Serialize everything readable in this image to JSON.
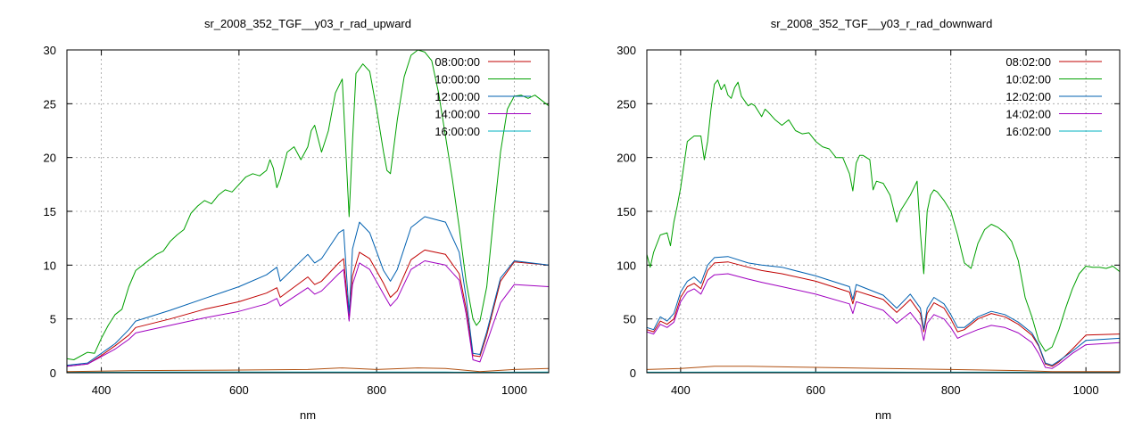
{
  "chart_data": [
    {
      "type": "line",
      "title": "sr_2008_352_TGF__y03_r_rad_upward",
      "xlabel": "nm",
      "ylabel": "",
      "xlim": [
        350,
        1050
      ],
      "ylim": [
        0,
        30
      ],
      "xticks": [
        400,
        600,
        800,
        1000
      ],
      "yticks": [
        0,
        5,
        10,
        15,
        20,
        25,
        30
      ],
      "grid": true,
      "legend": "top-right",
      "series": [
        {
          "name": "08:00:00",
          "color": "#c00000",
          "x": [
            350,
            380,
            400,
            420,
            440,
            450,
            500,
            550,
            600,
            640,
            655,
            660,
            700,
            710,
            720,
            745,
            752,
            760,
            765,
            775,
            790,
            810,
            820,
            830,
            850,
            870,
            900,
            920,
            930,
            940,
            950,
            960,
            980,
            1000,
            1050
          ],
          "y": [
            0.6,
            0.8,
            1.6,
            2.5,
            3.5,
            4.2,
            5.0,
            5.9,
            6.6,
            7.4,
            7.9,
            7.0,
            8.9,
            8.2,
            8.5,
            10.2,
            10.6,
            5.0,
            9.0,
            11.2,
            10.6,
            8.3,
            7.0,
            7.6,
            10.5,
            11.4,
            11.0,
            9.2,
            6.0,
            1.6,
            1.5,
            3.5,
            8.5,
            10.3,
            10.0
          ]
        },
        {
          "name": "10:00:00",
          "color": "#00a000",
          "x": [
            350,
            360,
            380,
            390,
            400,
            410,
            420,
            430,
            440,
            450,
            460,
            470,
            480,
            490,
            500,
            510,
            520,
            530,
            540,
            550,
            560,
            570,
            580,
            590,
            600,
            610,
            620,
            630,
            640,
            645,
            650,
            655,
            660,
            670,
            680,
            690,
            700,
            705,
            710,
            720,
            725,
            730,
            740,
            750,
            755,
            760,
            765,
            770,
            780,
            790,
            800,
            810,
            815,
            820,
            830,
            840,
            850,
            860,
            870,
            880,
            890,
            900,
            910,
            920,
            930,
            940,
            945,
            950,
            960,
            970,
            980,
            990,
            1000,
            1010,
            1020,
            1030,
            1040,
            1050
          ],
          "y": [
            1.3,
            1.2,
            1.9,
            1.8,
            3.2,
            4.4,
            5.4,
            5.9,
            8.0,
            9.5,
            10.0,
            10.5,
            11.0,
            11.3,
            12.2,
            12.8,
            13.3,
            14.8,
            15.5,
            16.0,
            15.7,
            16.5,
            17.0,
            16.8,
            17.5,
            18.2,
            18.5,
            18.3,
            18.8,
            19.8,
            19.0,
            17.2,
            18.0,
            20.5,
            21.0,
            19.8,
            21.0,
            22.5,
            23.0,
            20.5,
            21.5,
            22.5,
            26.0,
            27.3,
            21.0,
            14.5,
            21.5,
            27.8,
            28.7,
            28.0,
            24.5,
            20.5,
            18.8,
            18.5,
            23.5,
            27.5,
            29.5,
            30.0,
            29.8,
            29.0,
            26.0,
            22.0,
            18.0,
            13.5,
            8.5,
            5.0,
            4.4,
            4.8,
            8.0,
            14.5,
            20.5,
            24.5,
            25.7,
            25.8,
            25.5,
            25.8,
            25.3,
            24.8
          ]
        },
        {
          "name": "12:00:00",
          "color": "#0060b0",
          "x": [
            350,
            380,
            400,
            420,
            440,
            450,
            500,
            550,
            600,
            640,
            655,
            660,
            700,
            710,
            720,
            745,
            752,
            760,
            765,
            775,
            790,
            810,
            820,
            830,
            850,
            870,
            900,
            920,
            930,
            940,
            950,
            960,
            980,
            1000,
            1050
          ],
          "y": [
            0.7,
            0.9,
            1.8,
            2.7,
            4.0,
            4.8,
            5.8,
            6.9,
            8.0,
            9.1,
            9.8,
            8.5,
            11.0,
            10.2,
            10.6,
            13.0,
            13.3,
            5.5,
            11.5,
            14.0,
            13.0,
            9.5,
            8.5,
            9.6,
            13.5,
            14.5,
            14.0,
            11.2,
            7.0,
            1.8,
            1.7,
            3.8,
            8.8,
            10.4,
            10.0
          ]
        },
        {
          "name": "14:00:00",
          "color": "#a000c0",
          "x": [
            350,
            380,
            400,
            420,
            440,
            450,
            500,
            550,
            600,
            640,
            655,
            660,
            700,
            710,
            720,
            745,
            752,
            760,
            765,
            775,
            790,
            810,
            820,
            830,
            850,
            870,
            900,
            920,
            930,
            940,
            950,
            960,
            980,
            1000,
            1050
          ],
          "y": [
            0.6,
            0.8,
            1.5,
            2.2,
            3.1,
            3.7,
            4.4,
            5.1,
            5.7,
            6.4,
            6.9,
            6.2,
            7.9,
            7.3,
            7.6,
            9.2,
            9.6,
            4.8,
            8.2,
            10.2,
            9.6,
            7.3,
            6.2,
            6.9,
            9.6,
            10.4,
            10.0,
            8.6,
            5.5,
            1.2,
            1.0,
            2.8,
            6.5,
            8.2,
            8.0
          ]
        },
        {
          "name": "16:00:00",
          "color": "#00b0c0",
          "x": [
            350,
            500,
            700,
            800,
            900,
            950,
            1050
          ],
          "y": [
            0.05,
            0.06,
            0.06,
            0.07,
            0.06,
            0.04,
            0.06
          ]
        },
        {
          "name": "",
          "color": "#b05010",
          "x": [
            350,
            450,
            600,
            700,
            750,
            800,
            860,
            900,
            950,
            1000,
            1050
          ],
          "y": [
            0.1,
            0.2,
            0.25,
            0.3,
            0.45,
            0.3,
            0.45,
            0.4,
            0.1,
            0.3,
            0.4
          ]
        }
      ]
    },
    {
      "type": "line",
      "title": "sr_2008_352_TGF__y03_r_rad_downward",
      "xlabel": "nm",
      "ylabel": "",
      "xlim": [
        350,
        1050
      ],
      "ylim": [
        0,
        300
      ],
      "xticks": [
        400,
        600,
        800,
        1000
      ],
      "yticks": [
        0,
        50,
        100,
        150,
        200,
        250,
        300
      ],
      "grid": true,
      "legend": "top-right",
      "series": [
        {
          "name": "08:02:00",
          "color": "#c00000",
          "x": [
            350,
            360,
            370,
            380,
            390,
            400,
            410,
            420,
            430,
            440,
            450,
            470,
            500,
            520,
            550,
            600,
            650,
            655,
            660,
            680,
            700,
            720,
            740,
            755,
            760,
            765,
            775,
            790,
            800,
            810,
            820,
            840,
            860,
            880,
            900,
            920,
            930,
            940,
            950,
            960,
            980,
            1000,
            1050
          ],
          "y": [
            40,
            38,
            48,
            45,
            50,
            70,
            80,
            83,
            78,
            95,
            102,
            103,
            98,
            95,
            92,
            85,
            75,
            64,
            76,
            72,
            68,
            56,
            68,
            55,
            38,
            55,
            65,
            60,
            50,
            38,
            40,
            50,
            55,
            52,
            45,
            35,
            25,
            8,
            6,
            10,
            22,
            35,
            36
          ]
        },
        {
          "name": "10:02:00",
          "color": "#00a000",
          "x": [
            350,
            355,
            360,
            370,
            380,
            385,
            390,
            395,
            400,
            410,
            420,
            430,
            435,
            440,
            445,
            450,
            455,
            460,
            465,
            470,
            475,
            480,
            485,
            490,
            500,
            505,
            510,
            520,
            525,
            530,
            540,
            550,
            560,
            570,
            580,
            590,
            600,
            610,
            620,
            630,
            640,
            650,
            655,
            660,
            665,
            670,
            680,
            685,
            690,
            700,
            710,
            720,
            725,
            730,
            740,
            750,
            755,
            760,
            765,
            770,
            775,
            780,
            790,
            800,
            810,
            820,
            830,
            840,
            850,
            860,
            870,
            880,
            890,
            900,
            910,
            920,
            930,
            940,
            950,
            960,
            970,
            980,
            990,
            1000,
            1010,
            1020,
            1030,
            1040,
            1050
          ],
          "y": [
            110,
            98,
            112,
            128,
            130,
            118,
            140,
            155,
            172,
            215,
            220,
            220,
            198,
            215,
            245,
            268,
            272,
            263,
            268,
            258,
            255,
            265,
            270,
            257,
            248,
            250,
            248,
            238,
            245,
            242,
            235,
            230,
            235,
            225,
            222,
            223,
            215,
            210,
            208,
            200,
            200,
            185,
            169,
            195,
            202,
            202,
            198,
            170,
            178,
            176,
            165,
            140,
            150,
            155,
            165,
            178,
            130,
            92,
            150,
            165,
            170,
            168,
            160,
            150,
            128,
            102,
            97,
            120,
            133,
            138,
            135,
            130,
            122,
            104,
            70,
            52,
            30,
            20,
            24,
            40,
            60,
            78,
            92,
            99,
            98,
            98,
            97,
            99,
            94
          ]
        },
        {
          "name": "12:02:00",
          "color": "#0060b0",
          "x": [
            350,
            360,
            370,
            380,
            390,
            400,
            410,
            420,
            430,
            440,
            450,
            470,
            500,
            520,
            550,
            600,
            650,
            655,
            660,
            680,
            700,
            720,
            740,
            755,
            760,
            765,
            775,
            790,
            800,
            810,
            820,
            840,
            860,
            880,
            900,
            920,
            930,
            940,
            950,
            960,
            980,
            1000,
            1050
          ],
          "y": [
            42,
            40,
            52,
            48,
            55,
            75,
            85,
            89,
            83,
            100,
            107,
            108,
            102,
            100,
            98,
            90,
            80,
            68,
            82,
            77,
            72,
            60,
            73,
            60,
            40,
            60,
            70,
            64,
            54,
            42,
            42,
            52,
            57,
            54,
            47,
            37,
            26,
            9,
            7,
            11,
            20,
            30,
            32
          ]
        },
        {
          "name": "14:02:00",
          "color": "#a000c0",
          "x": [
            350,
            360,
            370,
            380,
            390,
            400,
            410,
            420,
            430,
            440,
            450,
            470,
            500,
            520,
            550,
            600,
            650,
            655,
            660,
            680,
            700,
            720,
            740,
            755,
            760,
            765,
            775,
            790,
            800,
            810,
            820,
            840,
            860,
            880,
            900,
            920,
            930,
            940,
            950,
            960,
            980,
            1000,
            1050
          ],
          "y": [
            38,
            36,
            45,
            42,
            47,
            66,
            75,
            78,
            73,
            86,
            91,
            92,
            87,
            84,
            80,
            73,
            64,
            55,
            66,
            62,
            58,
            46,
            56,
            44,
            30,
            46,
            54,
            50,
            42,
            32,
            35,
            40,
            44,
            42,
            37,
            28,
            18,
            5,
            4,
            8,
            18,
            26,
            28
          ]
        },
        {
          "name": "16:02:00",
          "color": "#00b0c0",
          "x": [
            350,
            500,
            700,
            800,
            900,
            950,
            1050
          ],
          "y": [
            0.5,
            0.6,
            0.6,
            0.5,
            0.5,
            0.3,
            0.5
          ]
        },
        {
          "name": "",
          "color": "#b05010",
          "x": [
            350,
            400,
            450,
            500,
            600,
            700,
            800,
            900,
            950,
            1000,
            1050
          ],
          "y": [
            3,
            4,
            6,
            6,
            5,
            4,
            3,
            2,
            1,
            1,
            1
          ]
        }
      ]
    }
  ]
}
